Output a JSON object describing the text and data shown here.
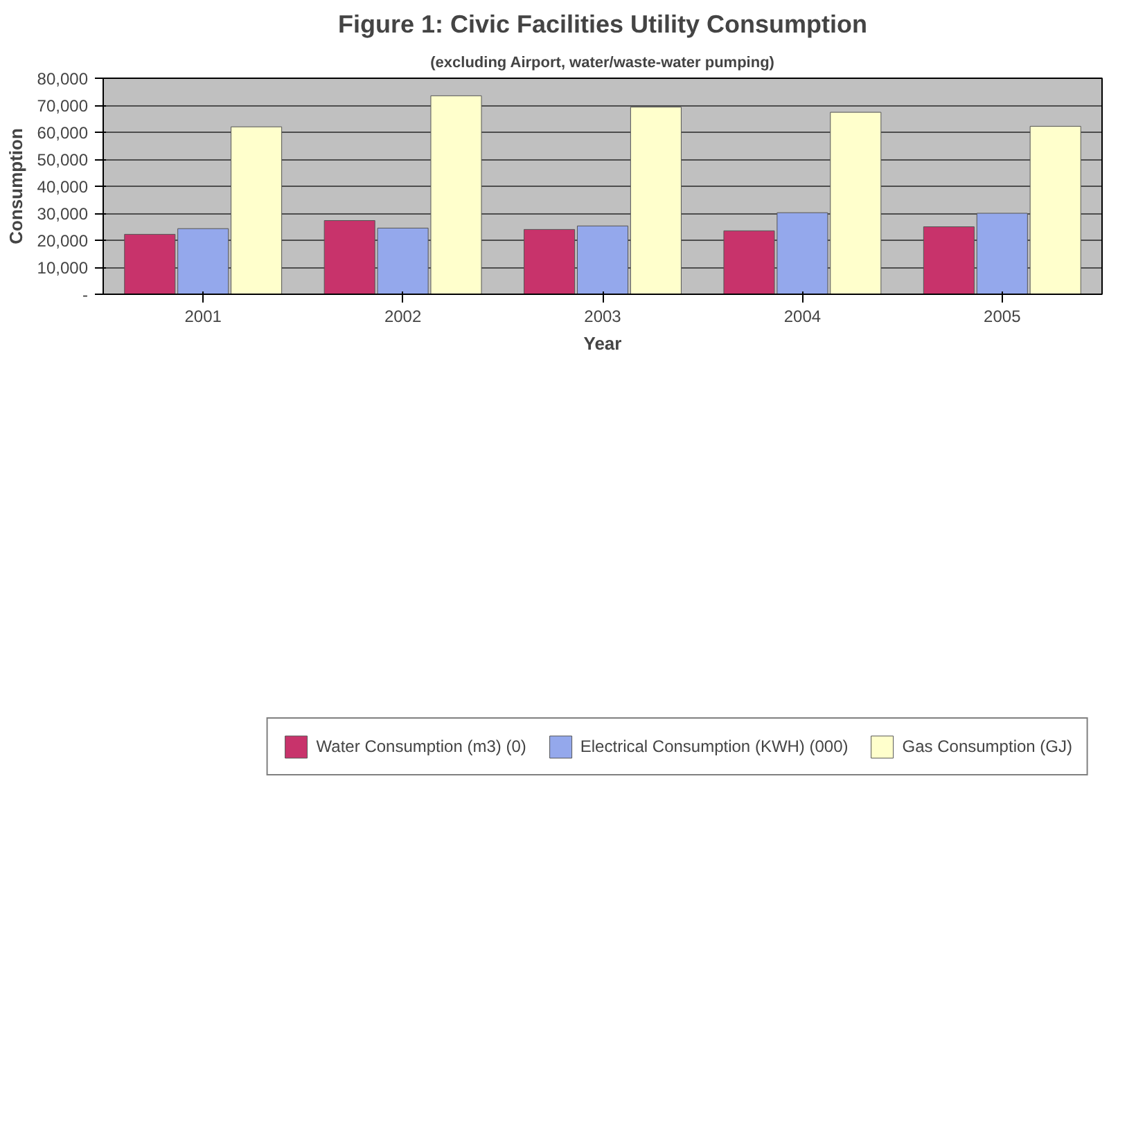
{
  "chart_data": {
    "type": "bar",
    "title": "Figure 1: Civic Facilities Utility Consumption",
    "subtitle": "(excluding Airport, water/waste-water pumping)",
    "xlabel": "Year",
    "ylabel": "Consumption",
    "categories": [
      "2001",
      "2002",
      "2003",
      "2004",
      "2005"
    ],
    "series": [
      {
        "name": "Water Consumption (m3) (0)",
        "color": "#c8336b",
        "values": [
          22200,
          27300,
          24000,
          23500,
          25000
        ]
      },
      {
        "name": "Electrical Consumption (KWH) (000)",
        "color": "#94a8ec",
        "values": [
          24300,
          24500,
          25300,
          30200,
          30000
        ]
      },
      {
        "name": "Gas Consumption (GJ)",
        "color": "#ffffcc",
        "values": [
          62000,
          73500,
          69300,
          67400,
          62200
        ]
      }
    ],
    "ylim": [
      0,
      80000
    ],
    "yticks": [
      {
        "value": 0,
        "label": "-"
      },
      {
        "value": 10000,
        "label": "10,000"
      },
      {
        "value": 20000,
        "label": "20,000"
      },
      {
        "value": 30000,
        "label": "30,000"
      },
      {
        "value": 40000,
        "label": "40,000"
      },
      {
        "value": 50000,
        "label": "50,000"
      },
      {
        "value": 60000,
        "label": "60,000"
      },
      {
        "value": 70000,
        "label": "70,000"
      },
      {
        "value": 80000,
        "label": "80,000"
      }
    ],
    "grid": "y",
    "legend": "bottom"
  }
}
